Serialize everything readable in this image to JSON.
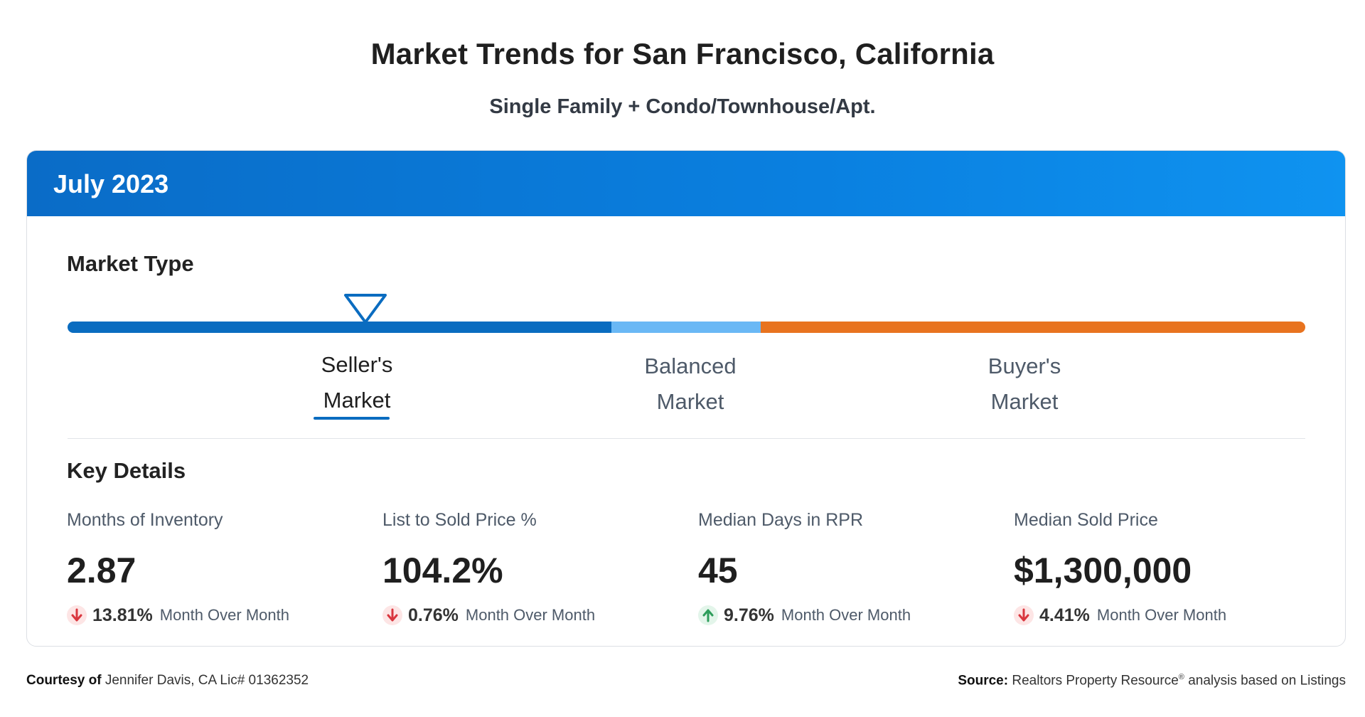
{
  "header": {
    "title": "Market Trends for San Francisco, California",
    "subtitle": "Single Family + Condo/Townhouse/Apt."
  },
  "card": {
    "period": "July 2023",
    "market_type": {
      "heading": "Market Type",
      "selected": "Seller's Market",
      "segments": [
        {
          "name": "seller",
          "color": "#0a6cc0"
        },
        {
          "name": "balanced",
          "color": "#6ab8f5"
        },
        {
          "name": "buyer",
          "color": "#e8731f"
        }
      ],
      "labels": {
        "seller": {
          "line1": "Seller's",
          "line2": "Market"
        },
        "balanced": {
          "line1": "Balanced",
          "line2": "Market"
        },
        "buyer": {
          "line1": "Buyer's",
          "line2": "Market"
        }
      }
    },
    "key_details": {
      "heading": "Key Details",
      "metrics": [
        {
          "label": "Months of Inventory",
          "value": "2.87",
          "direction": "down",
          "change": "13.81%",
          "period_text": "Month Over Month"
        },
        {
          "label": "List to Sold Price %",
          "value": "104.2%",
          "direction": "down",
          "change": "0.76%",
          "period_text": "Month Over Month"
        },
        {
          "label": "Median Days in RPR",
          "value": "45",
          "direction": "up",
          "change": "9.76%",
          "period_text": "Month Over Month"
        },
        {
          "label": "Median Sold Price",
          "value": "$1,300,000",
          "direction": "down",
          "change": "4.41%",
          "period_text": "Month Over Month"
        }
      ]
    }
  },
  "footer": {
    "courtesy_label": "Courtesy of",
    "courtesy_text": "Jennifer Davis, CA Lic# 01362352",
    "source_label": "Source:",
    "source_text": "Realtors Property Resource",
    "source_mark": "®",
    "source_suffix": "analysis based on Listings"
  },
  "colors": {
    "header_blue": "#0a80e0",
    "seller_blue": "#0a6cc0",
    "balanced_blue": "#6ab8f5",
    "buyer_orange": "#e8731f",
    "down_arrow": "#d9363e",
    "up_arrow": "#2e9d5b"
  },
  "icons": {
    "down": "arrow-down-icon",
    "up": "arrow-up-icon",
    "marker": "triangle-down-marker-icon"
  }
}
